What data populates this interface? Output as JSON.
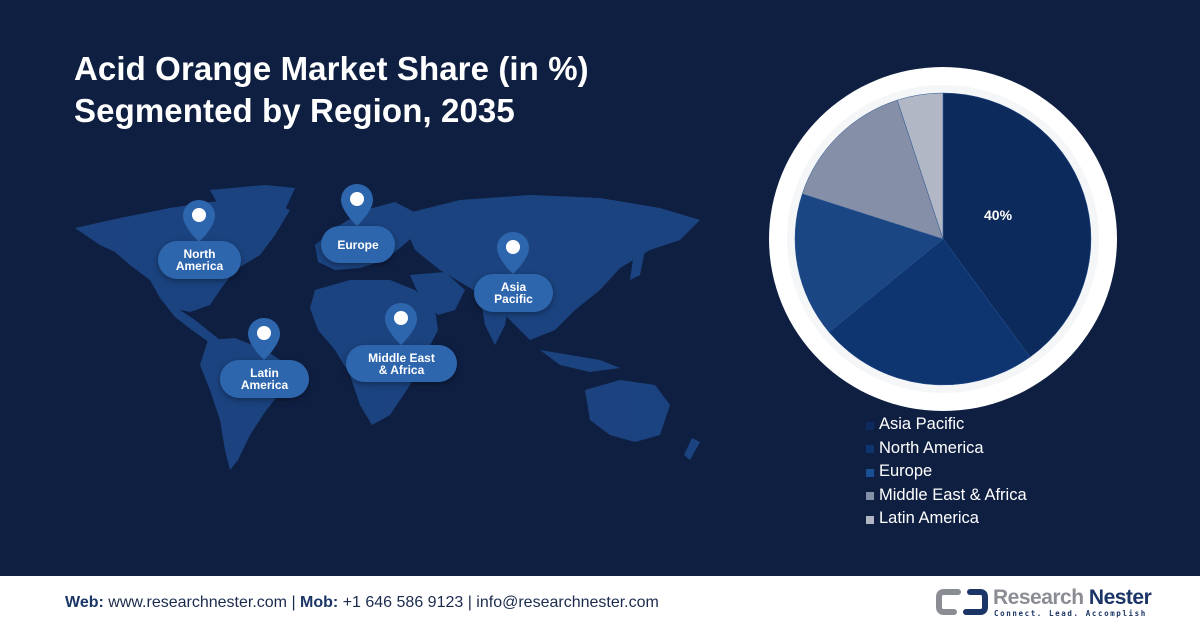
{
  "title": {
    "line1": "Acid Orange Market Share (in %)",
    "line2": "Segmented by Region, 2035"
  },
  "map": {
    "regions": [
      {
        "label_line1": "North",
        "label_line2": "America"
      },
      {
        "label_line1": "Europe",
        "label_line2": ""
      },
      {
        "label_line1": "Asia",
        "label_line2": "Pacific"
      },
      {
        "label_line1": "Latin",
        "label_line2": "America"
      },
      {
        "label_line1": "Middle East",
        "label_line2": "& Africa"
      }
    ]
  },
  "chart_data": {
    "type": "pie",
    "title": "Acid Orange Market Share (in %) Segmented by Region, 2035",
    "categories": [
      "Asia Pacific",
      "North America",
      "Europe",
      "Middle East & Africa",
      "Latin America"
    ],
    "values": [
      40,
      24,
      16,
      15,
      5
    ],
    "colors": [
      "#0d2a5c",
      "#0f3570",
      "#1a4684",
      "#858fa8",
      "#b2b7c6"
    ],
    "data_labels": [
      "40%",
      "",
      "",
      "",
      ""
    ],
    "start_angle": "12 o'clock, clockwise",
    "legend_position": "bottom-right"
  },
  "pie": {
    "label": "40%"
  },
  "legend": {
    "items": [
      {
        "label": "Asia Pacific",
        "color": "#0d2a5c"
      },
      {
        "label": "North America",
        "color": "#0f3570"
      },
      {
        "label": "Europe",
        "color": "#1a4f96"
      },
      {
        "label": "Middle East & Africa",
        "color": "#858fa8"
      },
      {
        "label": "Latin America",
        "color": "#b2b7c6"
      }
    ]
  },
  "footer": {
    "web_label": "Web:",
    "web_value": " www.researchnester.com | ",
    "mob_label": "Mob:",
    "mob_value": " +1 646 586 9123 | info@researchnester.com",
    "logo_name_a": "Research ",
    "logo_name_b": "Nester",
    "logo_tagline": "Connect. Lead. Accomplish"
  }
}
